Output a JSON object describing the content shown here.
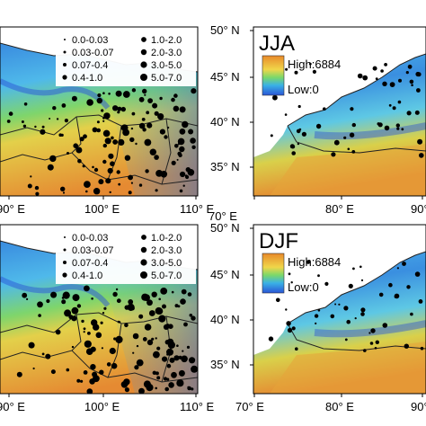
{
  "panels": [
    {
      "id": "top-left",
      "x_ticks": [
        "90° E",
        "100° E",
        "110° E"
      ],
      "legend": {
        "col1": [
          "0.0-0.03",
          "0.03-0.07",
          "0.07-0.4",
          "0.4-1.0"
        ],
        "col2": [
          "1.0-2.0",
          "2.0-3.0",
          "3.0-5.0",
          "5.0-7.0"
        ]
      }
    },
    {
      "id": "top-right",
      "season": "JJA",
      "y_ticks": [
        "50° N",
        "45° N",
        "40° N",
        "35° N"
      ],
      "x_ticks": [
        "70° E",
        "80° E",
        "90° E"
      ],
      "colorbar": {
        "high": "High:6884",
        "low": "Low:0"
      }
    },
    {
      "id": "bottom-left",
      "x_ticks": [
        "90° E",
        "100° E",
        "110° E"
      ],
      "legend": {
        "col1": [
          "0.0-0.03",
          "0.03-0.07",
          "0.07-0.4",
          "0.4-1.0"
        ],
        "col2": [
          "1.0-2.0",
          "2.0-3.0",
          "3.0-5.0",
          "5.0-7.0"
        ]
      }
    },
    {
      "id": "bottom-right",
      "season": "DJF",
      "y_ticks": [
        "50° N",
        "45° N",
        "40° N",
        "35° N"
      ],
      "x_ticks": [
        "70° E",
        "80° E",
        "90° E"
      ],
      "colorbar": {
        "high": "High:6884",
        "low": "Low:0"
      }
    }
  ],
  "colors": {
    "low": "#2a5fd8",
    "mid_blue": "#3aa7e8",
    "green": "#7fd66a",
    "yellow": "#e6d24a",
    "orange": "#e89a3a",
    "high": "#e07a2a",
    "border": "#222222"
  }
}
